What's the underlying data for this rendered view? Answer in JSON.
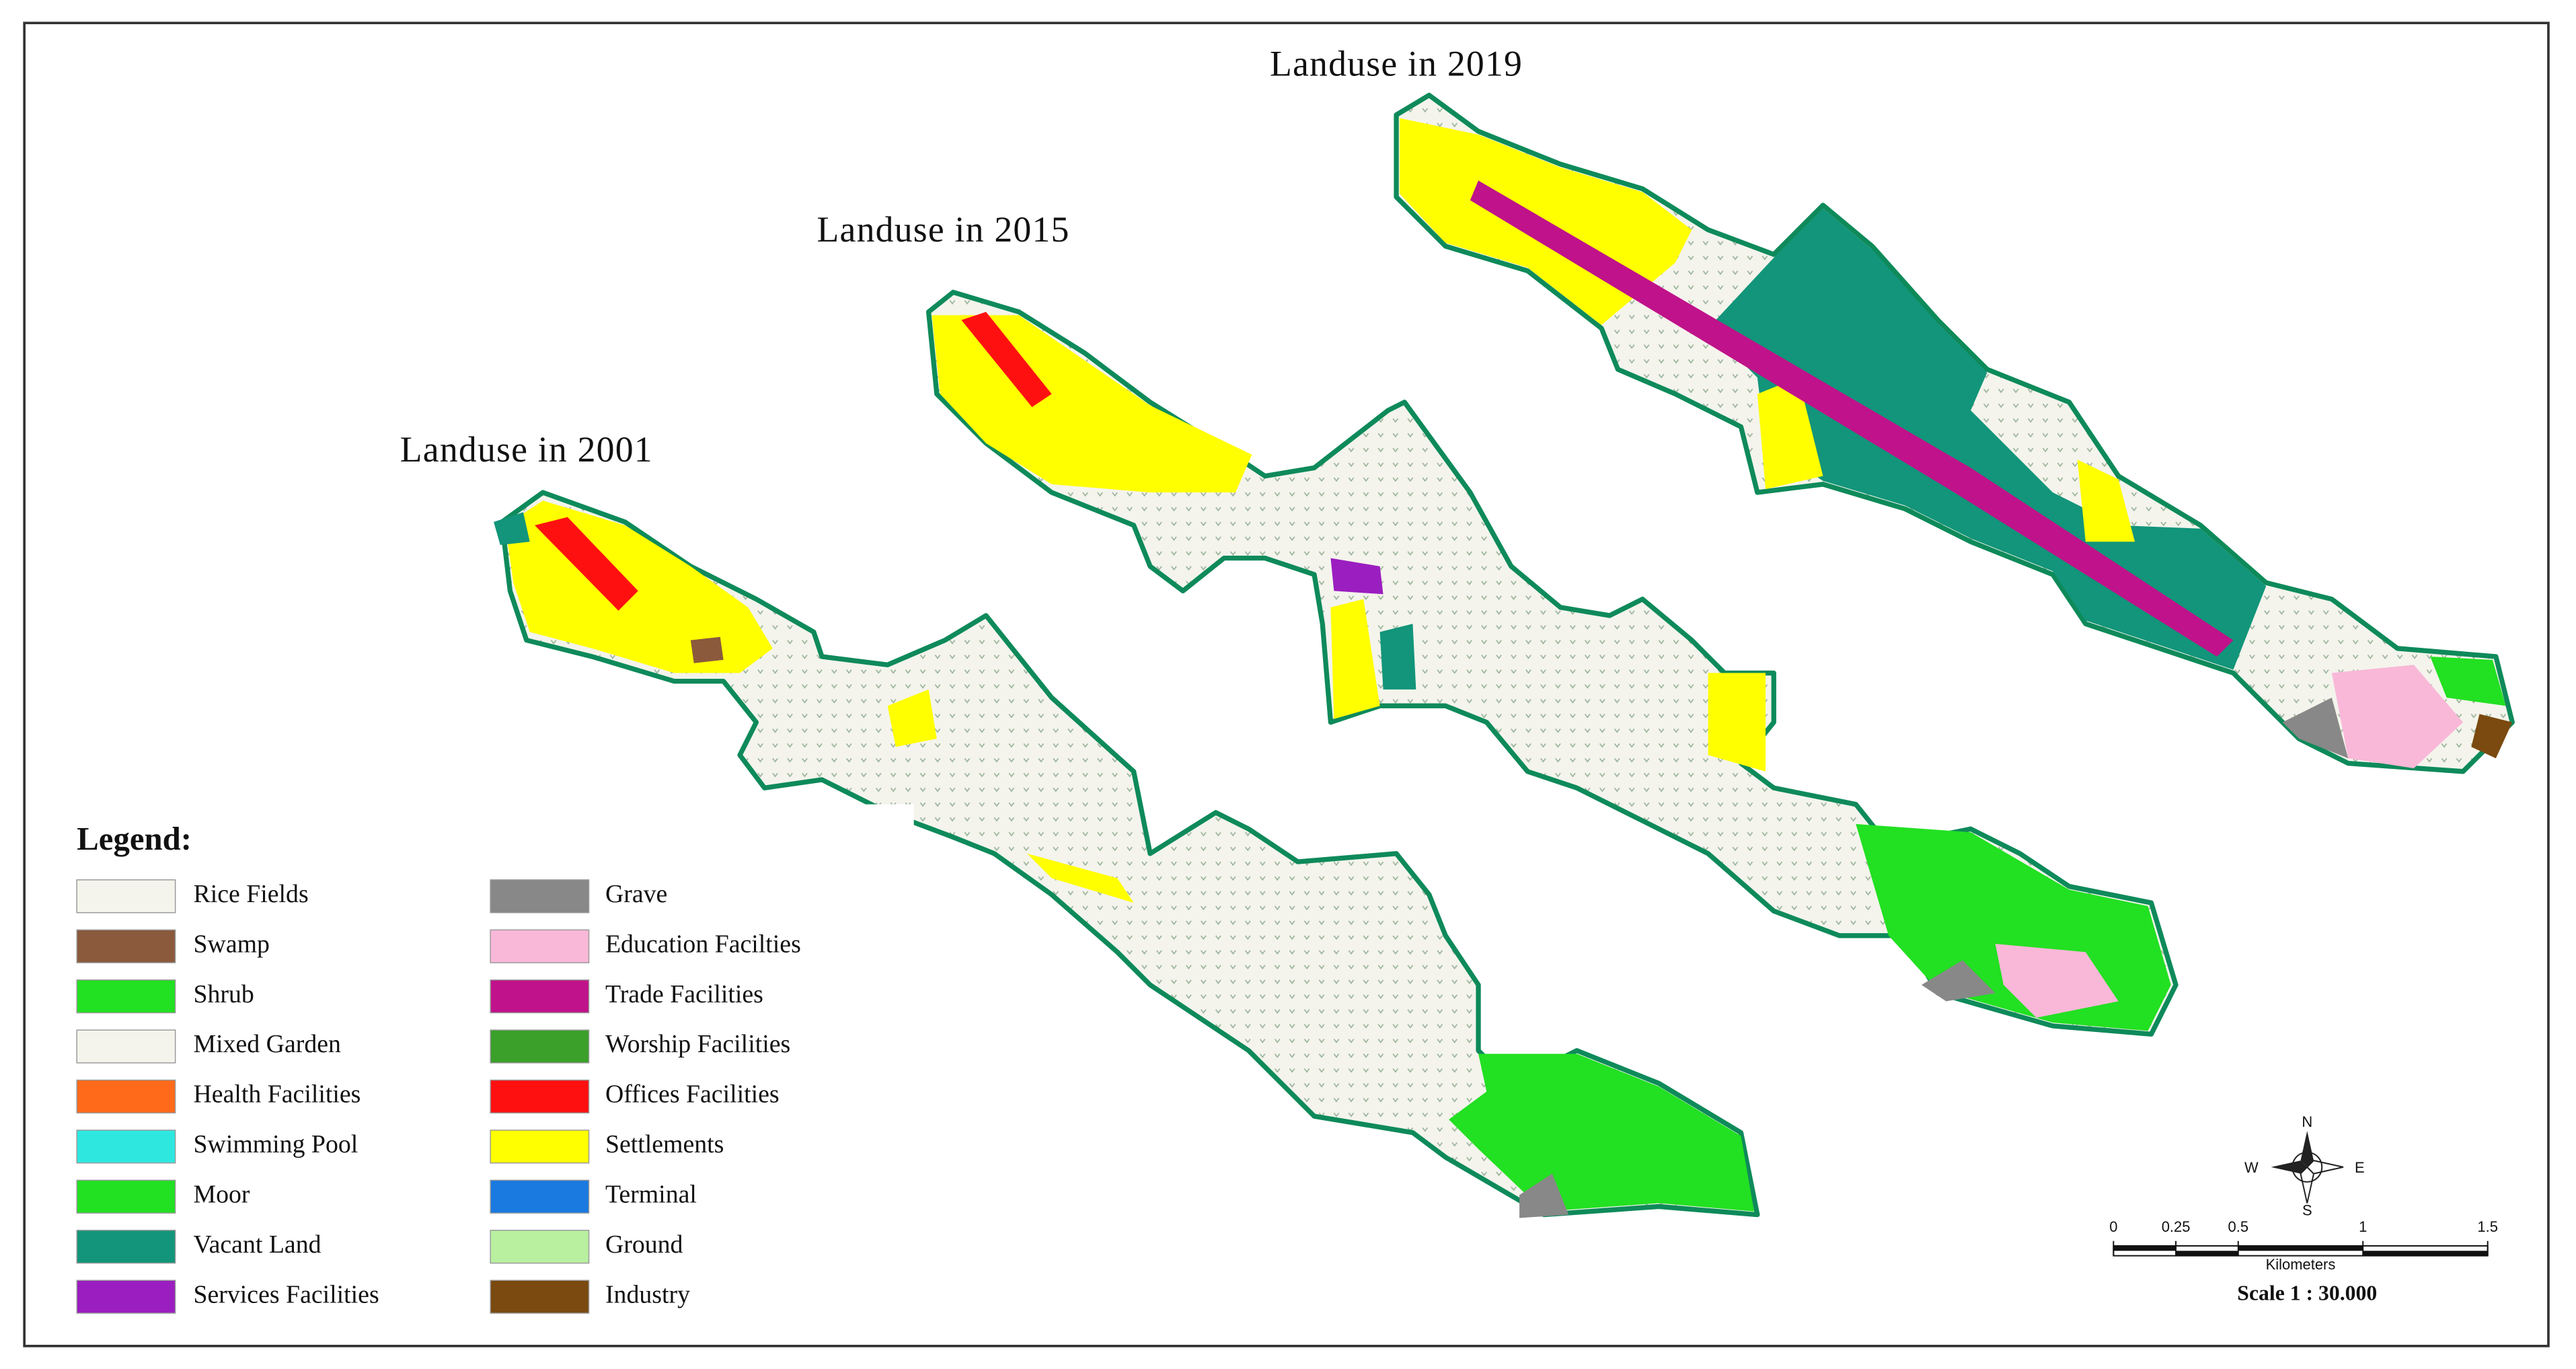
{
  "maps": [
    {
      "title": "Landuse in 2019"
    },
    {
      "title": "Landuse in 2015"
    },
    {
      "title": "Landuse in 2001"
    }
  ],
  "legend": {
    "title": "Legend:",
    "items": [
      {
        "label": "Rice Fields",
        "color": "#f4f4ec"
      },
      {
        "label": "Swamp",
        "color": "#8b5a3c"
      },
      {
        "label": "Shrub",
        "color": "#22e022"
      },
      {
        "label": "Mixed Garden",
        "color": "#f4f4ec"
      },
      {
        "label": "Health Facilities",
        "color": "#ff6a1a"
      },
      {
        "label": "Swimming Pool",
        "color": "#2ee8e0"
      },
      {
        "label": "Moor",
        "color": "#22e022"
      },
      {
        "label": "Vacant Land",
        "color": "#12957a"
      },
      {
        "label": "Services Facilities",
        "color": "#9b1ec0"
      },
      {
        "label": "Grave",
        "color": "#888888"
      },
      {
        "label": "Education Facilties",
        "color": "#f9b8d8"
      },
      {
        "label": "Trade Facilities",
        "color": "#c0128a"
      },
      {
        "label": "Worship Facilities",
        "color": "#3aa02a"
      },
      {
        "label": "Offices Facilities",
        "color": "#ff1010"
      },
      {
        "label": "Settlements",
        "color": "#ffff00"
      },
      {
        "label": "Terminal",
        "color": "#1a7ae0"
      },
      {
        "label": "Ground",
        "color": "#b8f0a0"
      },
      {
        "label": "Industry",
        "color": "#7a4a10"
      }
    ]
  },
  "compass": {
    "north": "N",
    "south": "S",
    "east": "E",
    "west": "W"
  },
  "scale_bar": {
    "ticks": [
      0,
      0.25,
      0.5,
      1,
      1.5
    ],
    "unit": "Kilometers",
    "label": "Scale 1 : 30.000"
  }
}
